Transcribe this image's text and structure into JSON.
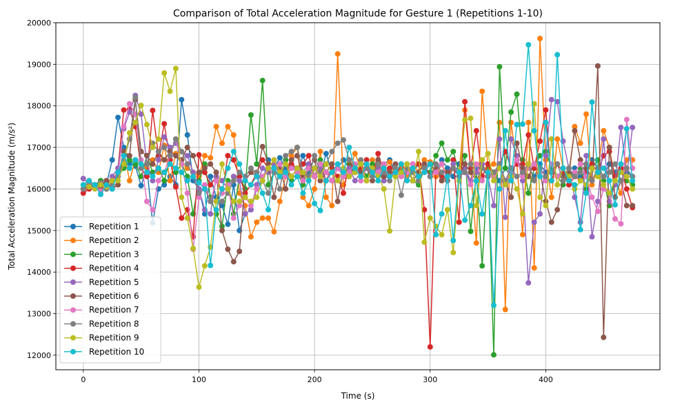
{
  "chart_data": {
    "type": "line",
    "title": "Comparison of Total Acceleration Magnitude for Gesture 1 (Repetitions 1-10)",
    "xlabel": "Time (s)",
    "ylabel": "Total Acceleration Magnitude (m/s²)",
    "xlim": [
      -23.75,
      498.75
    ],
    "ylim": [
      11650,
      20000
    ],
    "xticks": [
      0,
      100,
      200,
      300,
      400
    ],
    "yticks": [
      12000,
      13000,
      14000,
      15000,
      16000,
      17000,
      18000,
      19000,
      20000
    ],
    "grid": true,
    "legend_position": "lower-left",
    "x": [
      0,
      5,
      10,
      15,
      20,
      25,
      30,
      35,
      40,
      45,
      50,
      55,
      60,
      65,
      70,
      75,
      80,
      85,
      90,
      95,
      100,
      105,
      110,
      115,
      120,
      125,
      130,
      135,
      140,
      145,
      150,
      155,
      160,
      165,
      170,
      175,
      180,
      185,
      190,
      195,
      200,
      205,
      210,
      215,
      220,
      225,
      230,
      235,
      240,
      245,
      250,
      255,
      260,
      265,
      270,
      275,
      280,
      285,
      290,
      295,
      300,
      305,
      310,
      315,
      320,
      325,
      330,
      335,
      340,
      345,
      350,
      355,
      360,
      365,
      370,
      375,
      380,
      385,
      390,
      395,
      400,
      405,
      410,
      415,
      420,
      425,
      430,
      435,
      440,
      445,
      450,
      455,
      460,
      465,
      470,
      475
    ],
    "series": [
      {
        "name": "Repetition 1",
        "color": "#1f77b4",
        "values": [
          16000,
          16100,
          16050,
          16200,
          16100,
          16700,
          17720,
          17000,
          16600,
          16550,
          16080,
          16500,
          15180,
          16000,
          16100,
          16300,
          16100,
          18150,
          17300,
          16200,
          16000,
          15400,
          16300,
          15800,
          15600,
          15150,
          16100,
          15000,
          15400,
          15500,
          16000,
          16200,
          16700,
          16500,
          16750,
          16500,
          16600,
          16400,
          16800,
          16400,
          16500,
          16300,
          16850,
          16400,
          16500,
          16700,
          16500,
          16400,
          16600,
          16300,
          16500,
          16400,
          16600,
          16700,
          16400,
          16500,
          16300,
          16400,
          16600,
          16500,
          16600,
          16400,
          16700,
          16500,
          16300,
          16600,
          16400,
          16200,
          16500,
          16300,
          16600,
          16400,
          16200,
          16500,
          16300,
          16700,
          16400,
          16500,
          16300,
          16600,
          16400,
          16500,
          16300,
          16400,
          16200,
          16500,
          16300,
          16400,
          16700,
          16500,
          16300,
          16600,
          16400,
          16500,
          16400,
          16300
        ]
      },
      {
        "name": "Repetition 2",
        "color": "#ff7f0e",
        "values": [
          16000,
          16200,
          16100,
          16050,
          16150,
          16200,
          16300,
          16900,
          16200,
          16700,
          16600,
          16500,
          16700,
          16400,
          17050,
          16200,
          16850,
          16600,
          16500,
          16400,
          16300,
          16800,
          16750,
          17500,
          17100,
          17500,
          17300,
          15900,
          15600,
          14850,
          15200,
          15300,
          15300,
          14970,
          15700,
          16300,
          16800,
          17000,
          15800,
          15600,
          16000,
          16900,
          15800,
          15600,
          19250,
          16100,
          16400,
          16850,
          16500,
          16200,
          16700,
          16400,
          16500,
          16650,
          16300,
          16550,
          16300,
          16600,
          16400,
          16700,
          16650,
          16300,
          16600,
          16300,
          16500,
          16400,
          17900,
          16500,
          14700,
          18350,
          16500,
          16600,
          17600,
          13100,
          17600,
          16600,
          14900,
          17600,
          14100,
          19620,
          16700,
          15800,
          17200,
          16500,
          16300,
          17500,
          17100,
          17800,
          16100,
          16500,
          17400,
          17000,
          16200,
          15900,
          16700,
          16700
        ]
      },
      {
        "name": "Repetition 3",
        "color": "#2ca02c",
        "values": [
          16000,
          16050,
          16100,
          16200,
          16000,
          16100,
          16300,
          16500,
          16700,
          16600,
          16300,
          16800,
          16400,
          16500,
          16200,
          16700,
          16400,
          16600,
          16300,
          15400,
          16200,
          16600,
          15800,
          15400,
          15100,
          16200,
          15400,
          16300,
          16000,
          17780,
          16600,
          18610,
          16100,
          16400,
          16300,
          16700,
          16200,
          16400,
          16100,
          16500,
          16300,
          16700,
          16400,
          16200,
          16500,
          16300,
          16600,
          16400,
          16500,
          16300,
          16600,
          16400,
          16200,
          16500,
          16300,
          16400,
          16600,
          16200,
          16100,
          16500,
          16400,
          16800,
          17100,
          16700,
          16900,
          16400,
          16800,
          14980,
          16400,
          14150,
          16600,
          12010,
          18940,
          16500,
          17850,
          18280,
          16700,
          15900,
          16500,
          16800,
          16900,
          16500,
          16300,
          16100,
          16400,
          16300,
          16500,
          16000,
          16500,
          16700,
          16200,
          15600,
          16300,
          16400,
          16200,
          16100
        ]
      },
      {
        "name": "Repetition 4",
        "color": "#d62728",
        "values": [
          15900,
          16000,
          16100,
          16050,
          16200,
          16050,
          16500,
          17900,
          17920,
          17500,
          16500,
          16300,
          17890,
          16800,
          17570,
          16700,
          16050,
          15300,
          15500,
          14850,
          16820,
          16400,
          16100,
          16300,
          15900,
          16800,
          16700,
          16300,
          15900,
          16100,
          16400,
          16700,
          16500,
          16700,
          16300,
          16400,
          16600,
          16500,
          16600,
          16800,
          16300,
          16600,
          16200,
          16500,
          16300,
          15900,
          16700,
          16400,
          16500,
          16700,
          16300,
          16850,
          16400,
          16500,
          16300,
          16600,
          16400,
          16500,
          16600,
          15500,
          12200,
          16500,
          16300,
          16200,
          16700,
          15200,
          18100,
          16500,
          17400,
          16300,
          16600,
          16300,
          16600,
          16900,
          16500,
          16600,
          16600,
          17300,
          16500,
          17150,
          17900,
          16200,
          16600,
          16400,
          16100,
          16300,
          16200,
          16400,
          16600,
          16400,
          16800,
          16900,
          16300,
          16500,
          16000,
          15550
        ]
      },
      {
        "name": "Repetition 5",
        "color": "#9467bd",
        "values": [
          16250,
          16100,
          16050,
          16150,
          16100,
          16300,
          16500,
          17450,
          17850,
          18250,
          17800,
          16600,
          16200,
          16700,
          17250,
          17000,
          17100,
          16900,
          16800,
          16400,
          16000,
          15500,
          15400,
          16300,
          16200,
          16000,
          16300,
          16200,
          15400,
          15500,
          16100,
          16500,
          16400,
          16600,
          16400,
          16600,
          16300,
          16500,
          16400,
          16600,
          16300,
          16500,
          16200,
          16400,
          16600,
          16300,
          16500,
          16200,
          16400,
          16600,
          16300,
          16500,
          16200,
          16400,
          16600,
          16300,
          16500,
          16200,
          16400,
          16600,
          16300,
          16500,
          16200,
          16400,
          16600,
          16300,
          16500,
          16200,
          16400,
          16600,
          16300,
          15600,
          17200,
          15320,
          17200,
          16800,
          16200,
          13740,
          15200,
          15400,
          16800,
          18150,
          18100,
          17150,
          16500,
          15800,
          15200,
          16800,
          14850,
          15700,
          17200,
          15700,
          16100,
          17480,
          16300,
          17480
        ]
      },
      {
        "name": "Repetition 6",
        "color": "#8c564b",
        "values": [
          16000,
          16050,
          16100,
          16000,
          16200,
          16000,
          16100,
          16900,
          16800,
          18150,
          16900,
          16800,
          16600,
          16900,
          16700,
          16900,
          16800,
          16700,
          17000,
          16800,
          16400,
          16500,
          16600,
          16400,
          15000,
          14550,
          14250,
          14500,
          16200,
          16400,
          16300,
          17020,
          16600,
          15800,
          16500,
          16000,
          16700,
          16800,
          16300,
          16500,
          16700,
          16200,
          16400,
          16600,
          15700,
          16500,
          16300,
          16600,
          16400,
          16500,
          16200,
          16700,
          16300,
          16400,
          16600,
          16300,
          16500,
          16200,
          16400,
          16600,
          16300,
          16500,
          16200,
          16400,
          16500,
          16300,
          16600,
          16400,
          16200,
          16500,
          16300,
          16400,
          16600,
          16200,
          15800,
          17100,
          16500,
          16300,
          16600,
          16400,
          15700,
          15200,
          15500,
          16300,
          16400,
          17400,
          16700,
          16500,
          16200,
          18960,
          12430,
          17000,
          15800,
          16200,
          15600,
          15600
        ]
      },
      {
        "name": "Repetition 7",
        "color": "#e377c2",
        "values": [
          16000,
          16150,
          16100,
          15950,
          16050,
          16200,
          16300,
          17500,
          18050,
          17800,
          16700,
          15700,
          15500,
          16200,
          16400,
          16800,
          17200,
          16600,
          15900,
          14550,
          15800,
          16100,
          15700,
          16200,
          15900,
          16100,
          15300,
          15600,
          15800,
          15600,
          16000,
          16300,
          16500,
          16400,
          16600,
          16300,
          16500,
          16400,
          16200,
          16500,
          16300,
          16600,
          16400,
          16200,
          16500,
          16300,
          16400,
          16600,
          16200,
          16500,
          16300,
          16400,
          16600,
          16200,
          16500,
          16300,
          16400,
          16600,
          16200,
          16500,
          16300,
          16400,
          16600,
          16200,
          16500,
          16300,
          16400,
          16100,
          16600,
          16200,
          16400,
          16300,
          16500,
          16200,
          16400,
          16700,
          16300,
          16500,
          16600,
          16400,
          16200,
          16600,
          16300,
          16500,
          16200,
          16400,
          16600,
          16300,
          15800,
          15460,
          16000,
          15900,
          15280,
          15160,
          17670,
          16500
        ]
      },
      {
        "name": "Repetition 8",
        "color": "#7f7f7f",
        "values": [
          16000,
          16100,
          16050,
          16150,
          16000,
          16100,
          16300,
          16700,
          17200,
          18200,
          16500,
          16600,
          17100,
          16900,
          17000,
          16800,
          17200,
          16900,
          16600,
          16300,
          15900,
          16000,
          15700,
          15700,
          15700,
          15900,
          16200,
          16400,
          16300,
          16500,
          16400,
          16200,
          15900,
          16400,
          16000,
          16800,
          16900,
          17000,
          16400,
          16300,
          16800,
          16400,
          16600,
          16900,
          17100,
          17180,
          16700,
          16500,
          16700,
          16500,
          16300,
          16600,
          16400,
          16200,
          16500,
          15850,
          16500,
          16400,
          16200,
          16500,
          16300,
          16600,
          16400,
          16200,
          16500,
          16300,
          16400,
          16600,
          16200,
          16500,
          16300,
          16400,
          16600,
          16200,
          16500,
          16300,
          16400,
          16600,
          16200,
          16500,
          16300,
          16400,
          16600,
          16200,
          16500,
          16300,
          16400,
          16600,
          16200,
          16500,
          16300,
          16400,
          16600,
          16200,
          16500,
          16300
        ]
      },
      {
        "name": "Repetition 9",
        "color": "#bcbd22",
        "values": [
          16100,
          16050,
          16000,
          16100,
          16050,
          16200,
          16200,
          16600,
          17350,
          17600,
          18010,
          17550,
          17000,
          17200,
          18790,
          18350,
          18900,
          15800,
          15300,
          14570,
          13640,
          14150,
          14600,
          15700,
          16600,
          16000,
          15700,
          15700,
          15800,
          15700,
          15800,
          16200,
          16500,
          16700,
          16400,
          16600,
          16300,
          16500,
          16400,
          16200,
          16500,
          16300,
          16600,
          16400,
          16200,
          16500,
          16300,
          16400,
          16600,
          16200,
          16500,
          16300,
          16000,
          14990,
          16300,
          16400,
          16600,
          16200,
          16900,
          14720,
          15300,
          15100,
          14900,
          15500,
          14470,
          16200,
          17660,
          17700,
          15600,
          16700,
          16850,
          16200,
          16500,
          16100,
          16300,
          16000,
          15400,
          16600,
          18050,
          15800,
          15600,
          17200,
          16100,
          16500,
          16300,
          16000,
          16200,
          16100,
          16500,
          16300,
          16100,
          15900,
          16200,
          16400,
          16300,
          16000
        ]
      },
      {
        "name": "Repetition 10",
        "color": "#17becf",
        "values": [
          16100,
          16200,
          16100,
          15870,
          16100,
          16000,
          16400,
          16800,
          16500,
          16700,
          16600,
          16400,
          16300,
          16500,
          16400,
          16600,
          16500,
          16400,
          16200,
          16300,
          16150,
          16000,
          14160,
          15500,
          16000,
          16500,
          16900,
          16600,
          16200,
          16100,
          16300,
          15900,
          15500,
          16500,
          16300,
          16400,
          16100,
          16300,
          15900,
          16200,
          15650,
          15480,
          16200,
          16400,
          16600,
          16400,
          17000,
          16500,
          16300,
          16600,
          16400,
          16200,
          16500,
          16300,
          16400,
          16600,
          16200,
          16500,
          16300,
          16400,
          16600,
          14900,
          15400,
          16300,
          14760,
          16400,
          15250,
          15600,
          16200,
          15400,
          16400,
          13200,
          16000,
          17400,
          16200,
          17550,
          17560,
          19470,
          17400,
          16300,
          17600,
          16200,
          19230,
          16500,
          16200,
          16100,
          15020,
          15900,
          18090,
          16400,
          16500,
          16200,
          15620,
          16600,
          17450,
          16200
        ]
      }
    ]
  }
}
